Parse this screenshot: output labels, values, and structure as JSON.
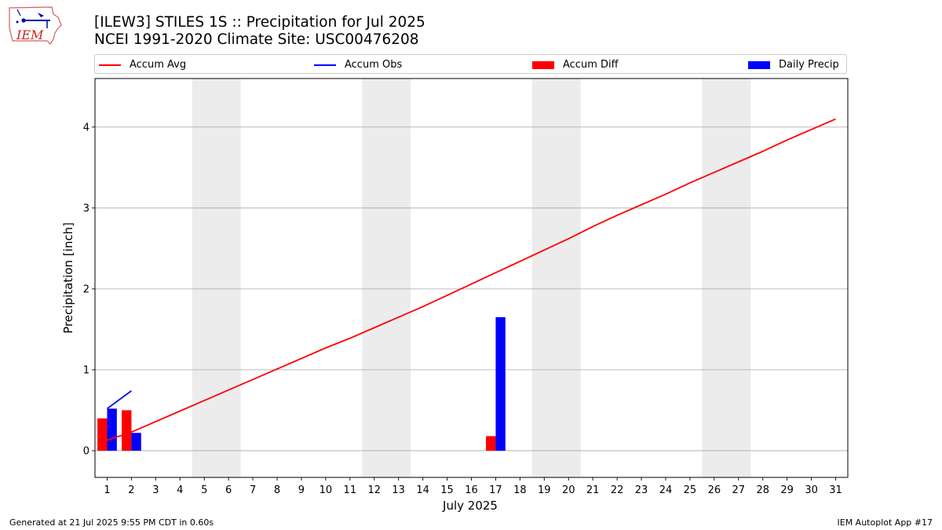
{
  "header": {
    "title_line1": "[ILEW3] STILES 1S :: Precipitation for Jul 2025",
    "title_line2": "NCEI 1991-2020 Climate Site: USC00476208"
  },
  "logo": {
    "text": "IEM"
  },
  "legend": {
    "items": [
      {
        "label": "Accum Avg",
        "kind": "line",
        "color": "#ff0000"
      },
      {
        "label": "Accum Obs",
        "kind": "line",
        "color": "#0000ff"
      },
      {
        "label": "Accum Diff",
        "kind": "box",
        "color": "#ff0000"
      },
      {
        "label": "Daily Precip",
        "kind": "box",
        "color": "#0000ff"
      }
    ]
  },
  "footer": {
    "left": "Generated at 21 Jul 2025 9:55 PM CDT in 0.60s",
    "right": "IEM Autoplot App #17"
  },
  "chart_data": {
    "type": "bar",
    "xlabel": "July 2025",
    "ylabel": "Precipitation [inch]",
    "x": [
      1,
      2,
      3,
      4,
      5,
      6,
      7,
      8,
      9,
      10,
      11,
      12,
      13,
      14,
      15,
      16,
      17,
      18,
      19,
      20,
      21,
      22,
      23,
      24,
      25,
      26,
      27,
      28,
      29,
      30,
      31
    ],
    "xlim": [
      0.5,
      31.5
    ],
    "ylim": [
      -0.33,
      4.6
    ],
    "yticks": [
      0,
      1,
      2,
      3,
      4
    ],
    "grid": "horizontal",
    "legend_position": "top",
    "weekend_shading": [
      [
        4.5,
        6.5
      ],
      [
        11.5,
        13.5
      ],
      [
        18.5,
        20.5
      ],
      [
        25.5,
        27.5
      ]
    ],
    "series": [
      {
        "name": "Accum Avg",
        "type": "line",
        "color": "#ff0000",
        "x": [
          1,
          2,
          3,
          4,
          5,
          6,
          7,
          8,
          9,
          10,
          11,
          12,
          13,
          14,
          15,
          16,
          17,
          18,
          19,
          20,
          21,
          22,
          23,
          24,
          25,
          26,
          27,
          28,
          29,
          30,
          31
        ],
        "values": [
          0.13,
          0.23,
          0.36,
          0.49,
          0.62,
          0.75,
          0.88,
          1.01,
          1.14,
          1.27,
          1.39,
          1.52,
          1.65,
          1.78,
          1.92,
          2.06,
          2.2,
          2.34,
          2.48,
          2.62,
          2.77,
          2.91,
          3.04,
          3.17,
          3.31,
          3.44,
          3.57,
          3.7,
          3.84,
          3.97,
          4.1
        ]
      },
      {
        "name": "Accum Obs",
        "type": "line",
        "color": "#0000ff",
        "x": [
          1,
          2
        ],
        "values": [
          0.52,
          0.74
        ]
      },
      {
        "name": "Accum Diff",
        "type": "bar",
        "color": "#ff0000",
        "offset": -0.2,
        "x": [
          1,
          2,
          17
        ],
        "values": [
          0.4,
          0.5,
          0.18
        ]
      },
      {
        "name": "Daily Precip",
        "type": "bar",
        "color": "#0000ff",
        "offset": 0.2,
        "x": [
          1,
          2,
          17
        ],
        "values": [
          0.52,
          0.22,
          1.65
        ]
      }
    ]
  }
}
